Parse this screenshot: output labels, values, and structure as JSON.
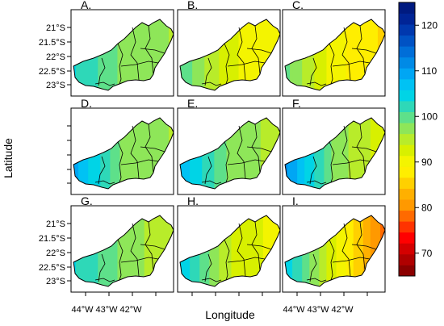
{
  "chart_data": {
    "type": "heatmap",
    "xlabel": "Longitude",
    "ylabel": "Latitude",
    "panels": [
      {
        "label": "A.",
        "field": {
          "west": 104,
          "center": 98,
          "east": 96
        }
      },
      {
        "label": "B.",
        "field": {
          "west": 101,
          "center": 92,
          "east": 89
        }
      },
      {
        "label": "C.",
        "field": {
          "west": 100,
          "center": 90,
          "east": 86
        }
      },
      {
        "label": "D.",
        "field": {
          "west": 110,
          "center": 98,
          "east": 96
        }
      },
      {
        "label": "E.",
        "field": {
          "west": 108,
          "center": 98,
          "east": 95
        }
      },
      {
        "label": "F.",
        "field": {
          "west": 112,
          "center": 98,
          "east": 92
        }
      },
      {
        "label": "G.",
        "field": {
          "west": 104,
          "center": 98,
          "east": 94
        }
      },
      {
        "label": "H.",
        "field": {
          "west": 106,
          "center": 94,
          "east": 90
        }
      },
      {
        "label": "I.",
        "field": {
          "west": 106,
          "center": 92,
          "east": 78
        }
      }
    ],
    "y_ticks": [
      "21°S",
      "21.5°S",
      "22°S",
      "22.5°S",
      "23°S"
    ],
    "x_ticks": [
      "44°W",
      "43°W",
      "42°W"
    ],
    "colorbar": {
      "range": [
        65,
        125
      ],
      "ticks": [
        "70",
        "80",
        "90",
        "100",
        "110",
        "120"
      ],
      "tick_values": [
        70,
        80,
        90,
        100,
        110,
        120
      ]
    },
    "palette": [
      "#8b0000",
      "#b00000",
      "#d40000",
      "#ff0000",
      "#ff3300",
      "#ff6a00",
      "#ff9900",
      "#ffb000",
      "#ffd000",
      "#ffee00",
      "#f4f400",
      "#d8f000",
      "#b8ec2a",
      "#8ee659",
      "#5ee08a",
      "#2ed8b8",
      "#00d4e6",
      "#00c2f4",
      "#00a6f4",
      "#008ae6",
      "#006ed8",
      "#0052c4",
      "#0038ae",
      "#002496",
      "#001a80"
    ]
  }
}
